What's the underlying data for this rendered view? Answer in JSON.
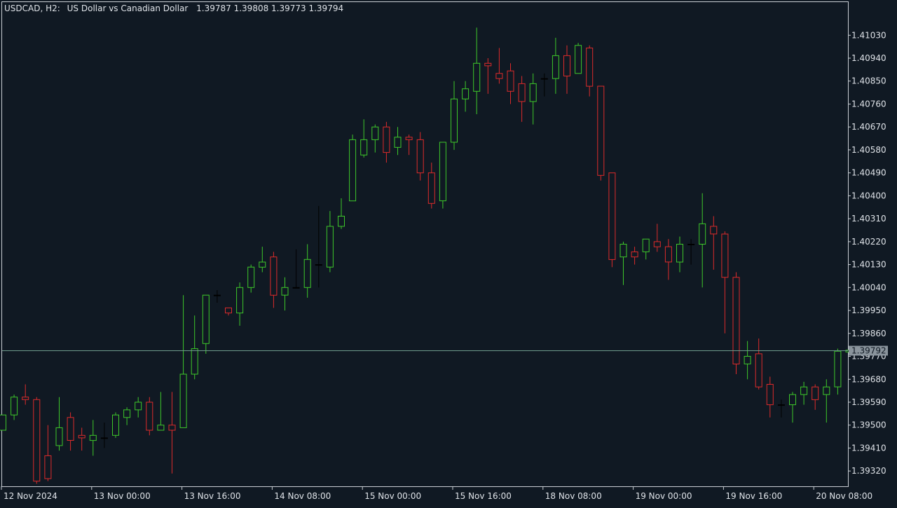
{
  "header": {
    "symbol": "USDCAD, H2:",
    "description": "US Dollar vs Canadian Dollar",
    "ohlc": "1.39787 1.39808 1.39773 1.39794"
  },
  "current_price_label": "1.39792",
  "colors": {
    "background": "#101923",
    "frame": "#c9ced4",
    "text": "#dfe3e8",
    "bull": "#3ec82a",
    "bear": "#dd2b2b",
    "doji": "#000000",
    "price_line": "#6f9c8c",
    "price_tag_bg": "#8a949c",
    "price_tag_text": "#101923"
  },
  "chart_data": {
    "type": "candlestick",
    "title": "USDCAD, H2",
    "grid": false,
    "ylim": [
      1.3926,
      1.4116
    ],
    "y_ticks": [
      "1.41030",
      "1.40940",
      "1.40850",
      "1.40760",
      "1.40670",
      "1.40580",
      "1.40490",
      "1.40400",
      "1.40310",
      "1.40220",
      "1.40130",
      "1.40040",
      "1.39950",
      "1.39860",
      "1.39770",
      "1.39680",
      "1.39590",
      "1.39500",
      "1.39410",
      "1.39320"
    ],
    "x_ticks": [
      {
        "label": "12 Nov 2024",
        "index": 0
      },
      {
        "label": "13 Nov 00:00",
        "index": 8
      },
      {
        "label": "13 Nov 16:00",
        "index": 16
      },
      {
        "label": "14 Nov 08:00",
        "index": 24
      },
      {
        "label": "15 Nov 00:00",
        "index": 32
      },
      {
        "label": "15 Nov 16:00",
        "index": 40
      },
      {
        "label": "18 Nov 08:00",
        "index": 48
      },
      {
        "label": "19 Nov 00:00",
        "index": 56
      },
      {
        "label": "19 Nov 16:00",
        "index": 64
      },
      {
        "label": "20 Nov 08:00",
        "index": 72
      }
    ],
    "current_price": 1.39792,
    "candles": [
      [
        1.3948,
        1.3954,
        1.3948,
        1.3954
      ],
      [
        1.3954,
        1.3962,
        1.3952,
        1.3961
      ],
      [
        1.3961,
        1.3966,
        1.3958,
        1.396
      ],
      [
        1.396,
        1.3961,
        1.3927,
        1.3928
      ],
      [
        1.3938,
        1.395,
        1.3928,
        1.3929
      ],
      [
        1.3942,
        1.3961,
        1.394,
        1.3949
      ],
      [
        1.3953,
        1.3955,
        1.394,
        1.3944
      ],
      [
        1.3946,
        1.3949,
        1.394,
        1.3945
      ],
      [
        1.3944,
        1.3952,
        1.3938,
        1.3946
      ],
      [
        1.3945,
        1.3951,
        1.3941,
        1.3945
      ],
      [
        1.3946,
        1.3955,
        1.3945,
        1.3954
      ],
      [
        1.3953,
        1.3957,
        1.395,
        1.3956
      ],
      [
        1.3956,
        1.3961,
        1.3953,
        1.3959
      ],
      [
        1.3959,
        1.3961,
        1.3946,
        1.3948
      ],
      [
        1.3948,
        1.3963,
        1.3948,
        1.395
      ],
      [
        1.395,
        1.3963,
        1.3931,
        1.3948
      ],
      [
        1.3949,
        1.4001,
        1.3949,
        1.397
      ],
      [
        1.397,
        1.3993,
        1.3968,
        1.398
      ],
      [
        1.3982,
        1.4001,
        1.3978,
        1.4001
      ],
      [
        1.4001,
        1.4003,
        1.3998,
        1.4001
      ],
      [
        1.3996,
        1.3996,
        1.3993,
        1.3994
      ],
      [
        1.3994,
        1.4006,
        1.3989,
        1.4004
      ],
      [
        1.4004,
        1.4013,
        1.4002,
        1.4012
      ],
      [
        1.4012,
        1.402,
        1.401,
        1.4014
      ],
      [
        1.4016,
        1.4018,
        1.3996,
        1.4001
      ],
      [
        1.4001,
        1.4008,
        1.3995,
        1.4004
      ],
      [
        1.4004,
        1.4019,
        1.4004,
        1.4004
      ],
      [
        1.4004,
        1.4021,
        1.4,
        1.4015
      ],
      [
        1.4013,
        1.4036,
        1.4004,
        1.4013
      ],
      [
        1.4012,
        1.4034,
        1.401,
        1.4028
      ],
      [
        1.4028,
        1.4039,
        1.4027,
        1.4032
      ],
      [
        1.4038,
        1.4064,
        1.4038,
        1.4062
      ],
      [
        1.4056,
        1.407,
        1.4055,
        1.4062
      ],
      [
        1.4062,
        1.4068,
        1.4057,
        1.4067
      ],
      [
        1.4067,
        1.4069,
        1.4053,
        1.4057
      ],
      [
        1.4059,
        1.4067,
        1.4056,
        1.4063
      ],
      [
        1.4063,
        1.4064,
        1.4056,
        1.4062
      ],
      [
        1.4062,
        1.4065,
        1.4046,
        1.4049
      ],
      [
        1.4049,
        1.4053,
        1.4035,
        1.4037
      ],
      [
        1.4038,
        1.406,
        1.4035,
        1.4061
      ],
      [
        1.4061,
        1.4085,
        1.4058,
        1.4078
      ],
      [
        1.4078,
        1.4085,
        1.4073,
        1.4082
      ],
      [
        1.4081,
        1.4106,
        1.4072,
        1.4092
      ],
      [
        1.4092,
        1.4094,
        1.408,
        1.4091
      ],
      [
        1.4088,
        1.4098,
        1.4084,
        1.4086
      ],
      [
        1.4089,
        1.4092,
        1.4076,
        1.4081
      ],
      [
        1.4084,
        1.4087,
        1.4069,
        1.4077
      ],
      [
        1.4077,
        1.4088,
        1.4068,
        1.4084
      ],
      [
        1.4086,
        1.4088,
        1.4079,
        1.4086
      ],
      [
        1.4086,
        1.4102,
        1.408,
        1.4095
      ],
      [
        1.4095,
        1.4099,
        1.408,
        1.4087
      ],
      [
        1.4088,
        1.41,
        1.4088,
        1.4099
      ],
      [
        1.4098,
        1.4099,
        1.4079,
        1.4083
      ],
      [
        1.4083,
        1.4083,
        1.4046,
        1.4048
      ],
      [
        1.4049,
        1.4048,
        1.4012,
        1.4015
      ],
      [
        1.4016,
        1.4022,
        1.4005,
        1.4021
      ],
      [
        1.4018,
        1.402,
        1.4013,
        1.4016
      ],
      [
        1.4018,
        1.4022,
        1.4015,
        1.4023
      ],
      [
        1.4022,
        1.4029,
        1.4018,
        1.402
      ],
      [
        1.402,
        1.4023,
        1.4007,
        1.4014
      ],
      [
        1.4014,
        1.4024,
        1.401,
        1.4021
      ],
      [
        1.4021,
        1.4023,
        1.4013,
        1.4021
      ],
      [
        1.4021,
        1.4041,
        1.4004,
        1.4029
      ],
      [
        1.4028,
        1.4032,
        1.4011,
        1.4025
      ],
      [
        1.4025,
        1.4026,
        1.3986,
        1.4008
      ],
      [
        1.4008,
        1.401,
        1.397,
        1.3974
      ],
      [
        1.3974,
        1.3983,
        1.3968,
        1.3977
      ],
      [
        1.3978,
        1.3984,
        1.3964,
        1.3965
      ],
      [
        1.3966,
        1.3969,
        1.3953,
        1.3958
      ],
      [
        1.3958,
        1.396,
        1.3953,
        1.3958
      ],
      [
        1.3958,
        1.3963,
        1.3951,
        1.3962
      ],
      [
        1.3962,
        1.3967,
        1.3958,
        1.3965
      ],
      [
        1.3965,
        1.3966,
        1.3956,
        1.396
      ],
      [
        1.3962,
        1.3968,
        1.3951,
        1.3965
      ],
      [
        1.3965,
        1.398,
        1.3962,
        1.3979
      ],
      [
        1.39787,
        1.39808,
        1.39773,
        1.39794
      ]
    ]
  }
}
